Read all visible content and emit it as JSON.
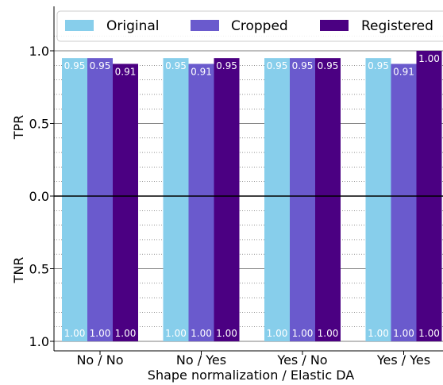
{
  "chart_data": {
    "type": "bar",
    "xlabel": "Shape normalization / Elastic DA",
    "ylabel_top": "TPR",
    "ylabel_bottom": "TNR",
    "categories": [
      "No / No",
      "No / Yes",
      "Yes / No",
      "Yes / Yes"
    ],
    "tpr_ticks": [
      "0.0",
      "0.5",
      "1.0"
    ],
    "tnr_ticks": [
      "0.5",
      "1.0"
    ],
    "tpr_ylim": [
      0,
      1.25
    ],
    "tnr_ylim": [
      0,
      1.0
    ],
    "legend_position": "top",
    "grid": "horizontal",
    "series": [
      {
        "name": "Original",
        "color": "#87ceeb",
        "tpr": [
          0.95,
          0.95,
          0.95,
          0.95
        ],
        "tnr": [
          1.0,
          1.0,
          1.0,
          1.0
        ],
        "tpr_labels": [
          "0.95",
          "0.95",
          "0.95",
          "0.95"
        ],
        "tnr_labels": [
          "1.00",
          "1.00",
          "1.00",
          "1.00"
        ]
      },
      {
        "name": "Cropped",
        "color": "#6a5acd",
        "tpr": [
          0.95,
          0.91,
          0.95,
          0.91
        ],
        "tnr": [
          1.0,
          1.0,
          1.0,
          1.0
        ],
        "tpr_labels": [
          "0.95",
          "0.91",
          "0.95",
          "0.91"
        ],
        "tnr_labels": [
          "1.00",
          "1.00",
          "1.00",
          "1.00"
        ]
      },
      {
        "name": "Registered",
        "color": "#4b0082",
        "tpr": [
          0.91,
          0.95,
          0.95,
          1.0
        ],
        "tnr": [
          1.0,
          1.0,
          1.0,
          1.0
        ],
        "tpr_labels": [
          "0.91",
          "0.95",
          "0.95",
          "1.00"
        ],
        "tnr_labels": [
          "1.00",
          "1.00",
          "1.00",
          "1.00"
        ]
      }
    ]
  }
}
